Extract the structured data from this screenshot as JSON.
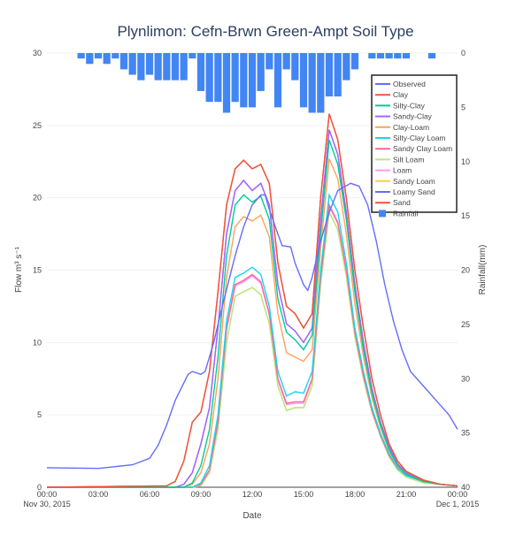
{
  "chart_data": {
    "type": "line",
    "title": "Plynlimon: Cefn-Brwn Green-Ampt Soil Type",
    "xlabel": "Date",
    "ylabel": "Flow m³ s⁻¹",
    "y2label": "Rainfall(mm)",
    "xlim_hours": [
      0,
      24
    ],
    "ylim": [
      0,
      30
    ],
    "y2lim": [
      40,
      0
    ],
    "y2_reversed": true,
    "grid": true,
    "legend_position": "top-right",
    "x_ticks": [
      "00:00",
      "03:00",
      "06:00",
      "09:00",
      "12:00",
      "15:00",
      "18:00",
      "21:00",
      "00:00"
    ],
    "x_tick_dates": [
      "Nov 30, 2015",
      "",
      "",
      "",
      "",
      "",
      "",
      "",
      "Dec 1, 2015"
    ],
    "y_ticks": [
      "0",
      "5",
      "10",
      "15",
      "20",
      "25",
      "30"
    ],
    "y2_ticks": [
      "0",
      "5",
      "10",
      "15",
      "20",
      "25",
      "30",
      "35",
      "40"
    ],
    "observed": {
      "name": "Observed",
      "color": "#636efa",
      "x": [
        "00:00",
        "03:00",
        "05:00",
        "06:00",
        "06:30",
        "07:00",
        "07:30",
        "08:15",
        "08:30",
        "09:00",
        "09:15",
        "09:45",
        "10:15",
        "11:00",
        "11:30",
        "12:00",
        "12:30",
        "12:45",
        "13:00",
        "13:30",
        "13:45",
        "14:15",
        "14:30",
        "15:00",
        "15:15",
        "15:30",
        "16:00",
        "16:30",
        "17:00",
        "17:45",
        "18:15",
        "18:45",
        "19:15",
        "19:45",
        "20:15",
        "20:45",
        "21:15",
        "22:00",
        "22:45",
        "23:30",
        "24:00"
      ],
      "y": [
        1.35,
        1.3,
        1.55,
        2.0,
        2.9,
        4.3,
        6.0,
        7.8,
        8.0,
        7.8,
        8.0,
        10.0,
        12.5,
        16.0,
        18.0,
        19.5,
        20.2,
        20.2,
        19.2,
        17.5,
        16.7,
        16.6,
        15.5,
        14.0,
        13.6,
        14.5,
        17.0,
        19.0,
        20.5,
        21.0,
        20.8,
        19.5,
        17.0,
        14.0,
        11.5,
        9.5,
        8.0,
        7.0,
        6.0,
        5.0,
        4.0
      ]
    },
    "model_x": [
      "00:00",
      "07:00",
      "07:30",
      "08:00",
      "08:30",
      "09:00",
      "09:30",
      "10:00",
      "10:30",
      "11:00",
      "11:30",
      "12:00",
      "12:30",
      "13:00",
      "13:30",
      "14:00",
      "14:30",
      "15:00",
      "15:30",
      "16:00",
      "16:30",
      "17:00",
      "17:30",
      "18:00",
      "18:30",
      "19:00",
      "19:30",
      "20:00",
      "20:30",
      "21:00",
      "22:00",
      "23:00",
      "24:00"
    ],
    "series": [
      {
        "name": "Clay",
        "color": "#EF553B",
        "values": [
          0,
          0.1,
          0.4,
          1.8,
          4.5,
          5.2,
          8,
          13.5,
          19.5,
          22,
          22.6,
          22,
          22.3,
          21,
          15.5,
          12.5,
          12,
          11,
          12,
          20,
          25.8,
          24,
          20,
          15,
          11,
          7.5,
          5,
          3,
          1.8,
          1.1,
          0.5,
          0.2,
          0.1
        ]
      },
      {
        "name": "Silty-Clay",
        "color": "#00cc96",
        "values": [
          0,
          0,
          0,
          0,
          0.3,
          1.5,
          4,
          9,
          16,
          19.5,
          20.2,
          19.7,
          20.1,
          18.5,
          13,
          10.7,
          10.2,
          9.5,
          10.5,
          17.5,
          24,
          22.3,
          18.5,
          13.5,
          9.5,
          6.5,
          4.3,
          2.6,
          1.5,
          0.9,
          0.4,
          0.2,
          0.1
        ]
      },
      {
        "name": "Sandy-Clay",
        "color": "#ab63fa",
        "values": [
          0,
          0,
          0,
          0.2,
          1,
          3,
          5.5,
          11,
          17.5,
          20.5,
          21.2,
          20.5,
          21,
          19.5,
          14,
          11.3,
          10.8,
          10,
          11,
          18.5,
          24.7,
          23,
          19,
          14,
          10,
          6.8,
          4.5,
          2.8,
          1.6,
          1,
          0.4,
          0.2,
          0.1
        ]
      },
      {
        "name": "Clay-Loam",
        "color": "#FFA15A",
        "values": [
          0,
          0,
          0,
          0,
          0.2,
          1,
          3,
          7.5,
          14.5,
          18,
          18.7,
          18.4,
          18.8,
          17.3,
          12,
          9.3,
          9,
          8.7,
          9.5,
          16.5,
          22.7,
          21.3,
          17.5,
          12.7,
          9,
          6.2,
          4.1,
          2.5,
          1.4,
          0.9,
          0.4,
          0.2,
          0.1
        ]
      },
      {
        "name": "Silty-Clay Loam",
        "color": "#19d3f3",
        "values": [
          0,
          0,
          0,
          0,
          0,
          0.3,
          1.5,
          5,
          11.5,
          14.5,
          14.8,
          15.2,
          14.7,
          12.5,
          8,
          6.3,
          6.6,
          6.5,
          8,
          15,
          20.2,
          19,
          15.5,
          11,
          8,
          5.5,
          3.7,
          2.3,
          1.3,
          0.8,
          0.4,
          0.2,
          0.1
        ]
      },
      {
        "name": "Sandy Clay Loam",
        "color": "#FF6692",
        "values": [
          0,
          0,
          0,
          0,
          0,
          0.2,
          1.2,
          4.5,
          11,
          14,
          14.3,
          14.7,
          14.2,
          12,
          7.5,
          5.8,
          5.9,
          5.9,
          7.5,
          14.5,
          19.5,
          18.3,
          15,
          10.7,
          7.7,
          5.3,
          3.6,
          2.2,
          1.3,
          0.8,
          0.4,
          0.2,
          0.1
        ]
      },
      {
        "name": "Silt Loam",
        "color": "#B6E880",
        "values": [
          0,
          0,
          0,
          0,
          0,
          0.1,
          1,
          4,
          10,
          13.2,
          13.5,
          13.8,
          13.3,
          11.3,
          7,
          5.3,
          5.5,
          5.5,
          7,
          14,
          19,
          17.8,
          14.6,
          10.4,
          7.5,
          5.2,
          3.5,
          2.1,
          1.2,
          0.7,
          0.3,
          0.2,
          0.1
        ]
      },
      {
        "name": "Loam",
        "color": "#FF97FF",
        "values": [
          0,
          0,
          0,
          0,
          0,
          0.2,
          1.1,
          4.4,
          10.9,
          13.9,
          14.2,
          14.6,
          14.1,
          11.9,
          7.4,
          5.7,
          5.8,
          5.8,
          7.4,
          14.4,
          19.4,
          18.2,
          14.9,
          10.6,
          7.6,
          5.2,
          3.5,
          2.2,
          1.3,
          0.8,
          0.4,
          0.2,
          0.1
        ]
      },
      {
        "name": "Sandy Loam",
        "color": "#FECB52",
        "values": [
          0,
          0,
          0,
          0,
          0,
          0.1,
          1,
          4,
          10,
          13.2,
          13.5,
          13.8,
          13.3,
          11.3,
          7,
          5.3,
          5.5,
          5.5,
          7,
          14,
          19,
          17.8,
          14.6,
          10.4,
          7.5,
          5.2,
          3.5,
          2.1,
          1.2,
          0.7,
          0.3,
          0.2,
          0.1
        ]
      },
      {
        "name": "Loamy Sand",
        "color": "#636efa",
        "values": [
          0,
          0,
          0,
          0.2,
          1,
          3,
          5.5,
          11,
          17.5,
          20.5,
          21.2,
          20.5,
          21,
          19.5,
          14,
          11.3,
          10.8,
          10,
          11,
          18.5,
          24.7,
          23,
          19,
          14,
          10,
          6.8,
          4.5,
          2.8,
          1.6,
          1,
          0.4,
          0.2,
          0.1
        ]
      },
      {
        "name": "Sand",
        "color": "#EF553B",
        "values": [
          0,
          0.1,
          0.4,
          1.8,
          4.5,
          5.2,
          8,
          13.5,
          19.5,
          22,
          22.6,
          22,
          22.3,
          21,
          15.5,
          12.5,
          12,
          11,
          12,
          20,
          25.8,
          24,
          20,
          15,
          11,
          7.5,
          5,
          3,
          1.8,
          1.1,
          0.5,
          0.2,
          0.1
        ]
      }
    ],
    "rainfall": {
      "name": "Rainfall",
      "color": "#4285f4",
      "start": "02:00",
      "interval_minutes": 30,
      "values": [
        0.5,
        1,
        0.5,
        1,
        0.5,
        1.5,
        2,
        2.5,
        2,
        2.5,
        2.5,
        2.5,
        2.5,
        0.5,
        3.5,
        4.5,
        4.5,
        5.5,
        4.5,
        5,
        5,
        3.5,
        1.5,
        5,
        1.5,
        2.5,
        5,
        5.5,
        5.5,
        4,
        4,
        2.5,
        1.5,
        0,
        0.5,
        0.5,
        0.5,
        0.5,
        0.5,
        0,
        0,
        0.5
      ]
    }
  }
}
